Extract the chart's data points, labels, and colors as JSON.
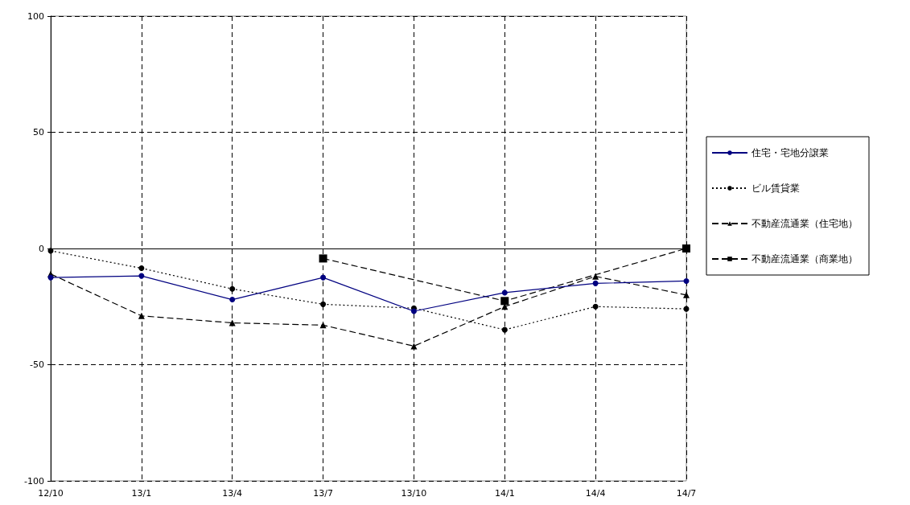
{
  "chart_data": {
    "type": "line",
    "categories": [
      "12/10",
      "13/1",
      "13/4",
      "13/7",
      "13/10",
      "14/1",
      "14/4",
      "14/7"
    ],
    "series": [
      {
        "name": "住宅・宅地分譲業",
        "color": "#000080",
        "marker": "circle",
        "line_style": "solid",
        "values": [
          -12.5,
          -11.8,
          -22,
          -12.5,
          -27,
          -19,
          -15,
          -14
        ]
      },
      {
        "name": "ビル賃貸業",
        "color": "#000000",
        "marker": "circle",
        "line_style": "dotted",
        "values": [
          -1,
          -8.5,
          -17.4,
          -24,
          -25.7,
          -35,
          -25,
          -26
        ]
      },
      {
        "name": "不動産流通業（住宅地）",
        "color": "#000000",
        "marker": "triangle",
        "line_style": "dashed",
        "values": [
          -11,
          -29,
          -32,
          -33,
          -42,
          -25,
          -12,
          -20
        ]
      },
      {
        "name": "不動産流通業（商業地）",
        "color": "#000000",
        "marker": "square",
        "line_style": "dashed",
        "values": [
          null,
          null,
          null,
          -4.3,
          null,
          -22.6,
          null,
          0
        ]
      }
    ],
    "ylim": [
      -100,
      100
    ],
    "yticks": [
      -100,
      -50,
      0,
      50,
      100
    ],
    "grid": true,
    "legend": "right"
  }
}
